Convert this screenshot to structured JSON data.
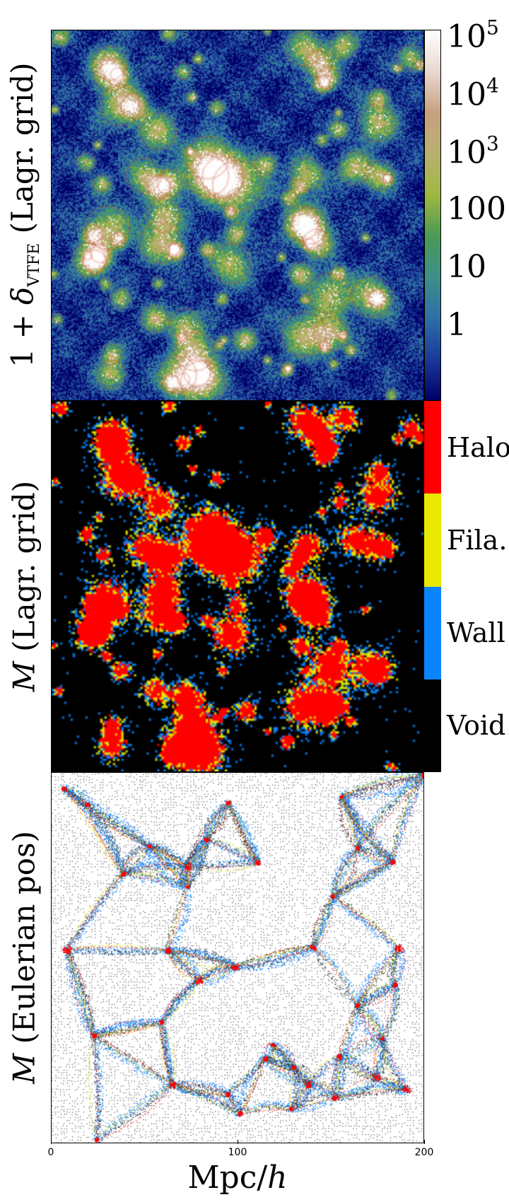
{
  "chart_data": [
    {
      "type": "heatmap",
      "ylabel_parts": {
        "prefix": "1 + ",
        "symbol": "δ",
        "subscript": "VTFE",
        "suffix": " (Lagr. grid)"
      },
      "colorbar": {
        "scale": "log",
        "ticks": [
          {
            "label": "10",
            "exponent": "5"
          },
          {
            "label": "10",
            "exponent": "4"
          },
          {
            "label": "10",
            "exponent": "3"
          },
          {
            "label": "100",
            "exponent": ""
          },
          {
            "label": "10",
            "exponent": ""
          },
          {
            "label": "1",
            "exponent": ""
          }
        ],
        "colors": [
          "#000066",
          "#1a3a9a",
          "#2f6fa8",
          "#3d8f8a",
          "#4a9a55",
          "#9fb840",
          "#b8b070",
          "#c8a080",
          "#e8d8d0",
          "#ffffff"
        ]
      }
    },
    {
      "type": "heatmap",
      "ylabel_parts": {
        "symbol": "M",
        "suffix": " (Lagr. grid)"
      },
      "categories": [
        "Halo",
        "Fila.",
        "Wall",
        "Void"
      ],
      "category_colors": [
        "#ff0000",
        "#e8e800",
        "#0a84ff",
        "#000000"
      ]
    },
    {
      "type": "scatter",
      "ylabel_parts": {
        "symbol": "M",
        "suffix": " (Eulerian pos)"
      },
      "xlim": [
        0,
        200
      ],
      "x_ticks": [
        "0",
        "100",
        "200"
      ],
      "xlabel_parts": {
        "prefix": "Mpc/",
        "symbol": "h"
      },
      "point_colors": {
        "Void": "#000000",
        "Wall": "#0a84ff",
        "Fila.": "#d8d800",
        "Halo": "#ff0000"
      }
    }
  ]
}
